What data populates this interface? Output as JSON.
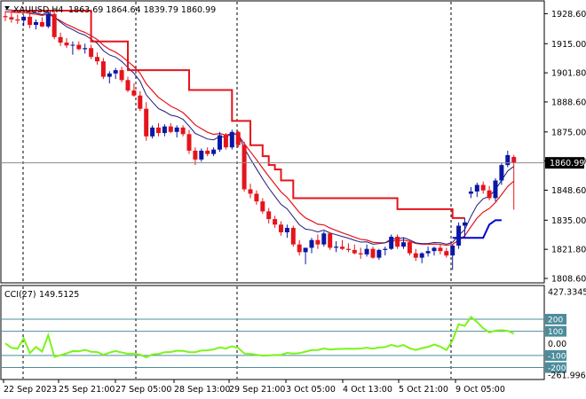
{
  "header": {
    "title": "XAUUSD,H4",
    "ohlc": "1863.69 1864.64 1839.79 1860.99"
  },
  "colors": {
    "bull": "#0a17a4",
    "bear": "#e5141b",
    "ma_fast": "#1c1a7a",
    "ma_slow": "#e5141b",
    "step": "#e5141b",
    "step2": "#0000cc",
    "cci": "#7cf41a",
    "level": "#4c8c9c",
    "grid": "#8c8c8c",
    "price_tag": "#000000"
  },
  "price_axis": {
    "ticks": [
      "1928.60",
      "1915.00",
      "1901.80",
      "1888.60",
      "1875.00",
      "1861.80",
      "1848.60",
      "1835.00",
      "1821.80",
      "1808.60"
    ],
    "tick_values": [
      1928.6,
      1915.0,
      1901.8,
      1888.6,
      1875.0,
      1861.8,
      1848.6,
      1835.0,
      1821.8,
      1808.6
    ],
    "current_price_label": "1860.99",
    "current_price": 1860.99
  },
  "time_axis": {
    "labels": [
      "22 Sep 2023",
      "25 Sep 21:00",
      "27 Sep 05:00",
      "28 Sep 13:00",
      "29 Sep 21:00",
      "3 Oct 05:00",
      "4 Oct 13:00",
      "5 Oct 21:00",
      "9 Oct 05:00"
    ]
  },
  "indicator": {
    "name": "CCI(27)",
    "value": "149.5125",
    "axis_labels": [
      "427.3345",
      "200",
      "100",
      "0.00",
      "-100",
      "-200",
      "-261.9961"
    ],
    "axis_values": [
      427.3345,
      200,
      100,
      0,
      -100,
      -200,
      -261.9961
    ],
    "levels": [
      200,
      100,
      -100,
      -200
    ]
  },
  "chart_data": {
    "type": "candlestick",
    "y_range": [
      1807,
      1934
    ],
    "candles": [
      [
        1927.5,
        1929.8,
        1925.2,
        1927.0
      ],
      [
        1927.0,
        1929.0,
        1924.5,
        1926.0
      ],
      [
        1926.0,
        1928.2,
        1924.0,
        1925.5
      ],
      [
        1925.5,
        1928.0,
        1923.0,
        1927.2
      ],
      [
        1927.2,
        1929.0,
        1922.0,
        1923.5
      ],
      [
        1923.5,
        1926.0,
        1921.5,
        1924.8
      ],
      [
        1924.8,
        1927.0,
        1922.5,
        1922.8
      ],
      [
        1922.8,
        1929.5,
        1922.0,
        1928.5
      ],
      [
        1928.5,
        1929.5,
        1917.0,
        1918.0
      ],
      [
        1918.0,
        1920.0,
        1914.0,
        1915.5
      ],
      [
        1915.5,
        1917.5,
        1913.0,
        1914.2
      ],
      [
        1914.2,
        1916.0,
        1910.0,
        1914.5
      ],
      [
        1914.5,
        1916.0,
        1912.0,
        1912.5
      ],
      [
        1912.5,
        1915.0,
        1910.5,
        1913.0
      ],
      [
        1913.0,
        1914.5,
        1908.0,
        1909.0
      ],
      [
        1909.0,
        1911.0,
        1905.5,
        1907.0
      ],
      [
        1907.0,
        1908.5,
        1899.0,
        1900.0
      ],
      [
        1900.0,
        1902.5,
        1897.0,
        1901.5
      ],
      [
        1901.5,
        1904.0,
        1899.0,
        1903.0
      ],
      [
        1903.0,
        1904.5,
        1897.5,
        1898.5
      ],
      [
        1898.5,
        1900.0,
        1893.0,
        1893.8
      ],
      [
        1893.8,
        1897.0,
        1891.0,
        1891.5
      ],
      [
        1891.5,
        1893.5,
        1884.5,
        1885.5
      ],
      [
        1885.5,
        1888.5,
        1871.0,
        1873.0
      ],
      [
        1873.0,
        1878.0,
        1872.0,
        1877.0
      ],
      [
        1877.0,
        1879.0,
        1873.0,
        1874.5
      ],
      [
        1874.5,
        1878.5,
        1873.0,
        1877.5
      ],
      [
        1877.5,
        1879.0,
        1874.5,
        1875.0
      ],
      [
        1875.0,
        1878.0,
        1872.5,
        1877.0
      ],
      [
        1877.0,
        1878.0,
        1873.0,
        1874.0
      ],
      [
        1874.0,
        1876.0,
        1865.0,
        1866.5
      ],
      [
        1866.5,
        1868.0,
        1860.0,
        1862.5
      ],
      [
        1862.5,
        1867.5,
        1861.5,
        1866.5
      ],
      [
        1866.5,
        1868.0,
        1864.0,
        1865.0
      ],
      [
        1865.0,
        1868.0,
        1864.0,
        1867.0
      ],
      [
        1867.0,
        1875.0,
        1866.0,
        1873.5
      ],
      [
        1873.5,
        1874.5,
        1867.0,
        1868.0
      ],
      [
        1868.0,
        1876.0,
        1867.0,
        1875.0
      ],
      [
        1875.0,
        1875.5,
        1868.0,
        1869.0
      ],
      [
        1869.0,
        1870.5,
        1848.0,
        1849.0
      ],
      [
        1849.0,
        1851.5,
        1845.0,
        1847.0
      ],
      [
        1847.0,
        1848.5,
        1842.0,
        1843.5
      ],
      [
        1843.5,
        1845.0,
        1838.0,
        1839.0
      ],
      [
        1839.0,
        1840.5,
        1833.5,
        1835.5
      ],
      [
        1835.5,
        1837.0,
        1831.5,
        1833.0
      ],
      [
        1833.0,
        1834.5,
        1828.0,
        1829.5
      ],
      [
        1829.5,
        1833.0,
        1827.0,
        1831.5
      ],
      [
        1831.5,
        1832.5,
        1823.0,
        1824.0
      ],
      [
        1824.0,
        1826.0,
        1819.0,
        1820.5
      ],
      [
        1820.5,
        1822.0,
        1815.0,
        1822.5
      ],
      [
        1822.5,
        1827.0,
        1820.0,
        1826.0
      ],
      [
        1826.0,
        1828.5,
        1822.0,
        1824.0
      ],
      [
        1824.0,
        1830.0,
        1823.0,
        1829.0
      ],
      [
        1829.0,
        1829.5,
        1821.5,
        1822.5
      ],
      [
        1822.5,
        1825.5,
        1820.5,
        1823.0
      ],
      [
        1823.0,
        1826.0,
        1821.5,
        1822.0
      ],
      [
        1822.0,
        1824.5,
        1820.5,
        1821.5
      ],
      [
        1821.5,
        1824.0,
        1819.5,
        1820.0
      ],
      [
        1820.0,
        1822.5,
        1817.5,
        1819.5
      ],
      [
        1819.5,
        1824.0,
        1818.5,
        1822.0
      ],
      [
        1822.0,
        1823.0,
        1817.5,
        1818.0
      ],
      [
        1818.0,
        1822.0,
        1817.0,
        1821.5
      ],
      [
        1821.5,
        1823.0,
        1819.0,
        1822.0
      ],
      [
        1822.0,
        1828.5,
        1821.5,
        1827.5
      ],
      [
        1827.5,
        1828.5,
        1822.0,
        1823.0
      ],
      [
        1823.0,
        1827.0,
        1822.0,
        1825.0
      ],
      [
        1825.0,
        1826.0,
        1819.0,
        1820.0
      ],
      [
        1820.0,
        1822.0,
        1816.5,
        1818.0
      ],
      [
        1818.0,
        1820.5,
        1815.5,
        1820.0
      ],
      [
        1820.0,
        1823.0,
        1818.5,
        1821.0
      ],
      [
        1821.0,
        1823.0,
        1819.0,
        1822.5
      ],
      [
        1822.5,
        1824.0,
        1819.5,
        1821.0
      ],
      [
        1821.0,
        1822.5,
        1818.0,
        1819.0
      ],
      [
        1819.0,
        1824.0,
        1812.5,
        1823.5
      ],
      [
        1823.5,
        1834.0,
        1822.0,
        1832.5
      ],
      [
        1832.5,
        1836.0,
        1827.0,
        1834.0
      ],
      [
        1847.0,
        1850.0,
        1845.0,
        1848.0
      ],
      [
        1848.0,
        1852.0,
        1845.5,
        1851.0
      ],
      [
        1851.0,
        1852.5,
        1847.0,
        1848.5
      ],
      [
        1848.5,
        1850.5,
        1844.0,
        1845.0
      ],
      [
        1845.0,
        1854.0,
        1843.5,
        1853.0
      ],
      [
        1853.0,
        1861.0,
        1851.0,
        1860.0
      ],
      [
        1860.0,
        1866.5,
        1859.0,
        1864.5
      ],
      [
        1863.69,
        1864.64,
        1839.79,
        1860.99
      ]
    ]
  }
}
